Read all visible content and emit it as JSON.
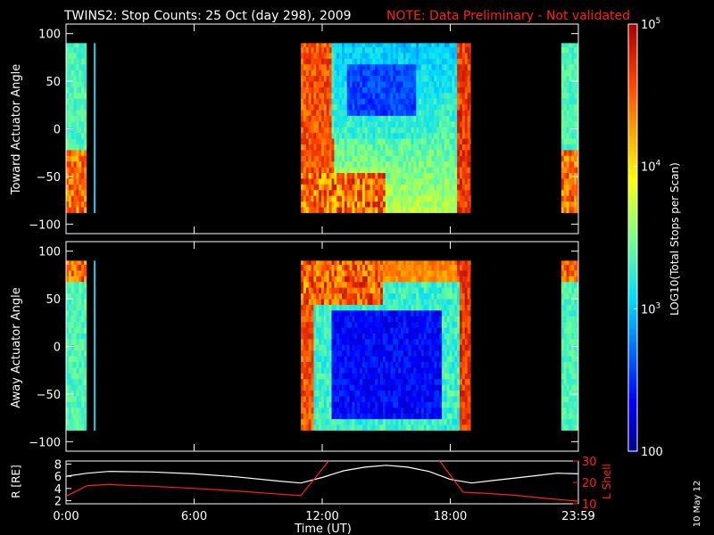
{
  "title": "TWINS2: Stop Counts: 25 Oct (day 298), 2009",
  "note": "NOTE: Data Preliminary - Not validated",
  "date_stamp": "10 May 12",
  "colors": {
    "background": "#000000",
    "axes": "#ffffff",
    "note": "#ff2020",
    "orbit_r": "#ffffff",
    "orbit_l": "#ff2020"
  },
  "chart_data": [
    {
      "type": "heatmap",
      "panel": "top",
      "ylabel": "Toward Actuator Angle",
      "ylim": [
        -110,
        110
      ],
      "yticks": [
        100,
        50,
        0,
        -50,
        -100
      ],
      "xlim_hours": [
        0,
        24
      ],
      "data_angle_range": [
        -88,
        90
      ],
      "coverage_hours": [
        [
          0.0,
          0.95
        ],
        [
          1.3,
          1.36
        ],
        [
          11.0,
          18.95
        ],
        [
          23.2,
          24.0
        ]
      ],
      "low_count_region": {
        "hours": [
          13.2,
          16.4
        ],
        "angle": [
          15,
          68
        ],
        "log10_count": 2.4
      },
      "colorbar_ref": "log10_count"
    },
    {
      "type": "heatmap",
      "panel": "middle",
      "ylabel": "Away Actuator Angle",
      "ylim": [
        -110,
        110
      ],
      "yticks": [
        100,
        50,
        0,
        -50,
        -100
      ],
      "xlim_hours": [
        0,
        24
      ],
      "data_angle_range": [
        -88,
        90
      ],
      "coverage_hours": [
        [
          0.0,
          0.95
        ],
        [
          1.3,
          1.36
        ],
        [
          11.0,
          18.95
        ],
        [
          23.2,
          24.0
        ]
      ],
      "low_count_region": {
        "hours": [
          12.4,
          17.6
        ],
        "angle": [
          -75,
          40
        ],
        "log10_count": 2.2
      },
      "colorbar_ref": "log10_count"
    },
    {
      "type": "colorbar",
      "label": "LOG10(Total Stops per Scan)",
      "scale": "log",
      "range": [
        100,
        100000
      ],
      "tick_labels": [
        "10^5",
        "10^4",
        "10^3",
        "100"
      ],
      "tick_values": [
        100000,
        10000,
        1000,
        100
      ]
    },
    {
      "type": "line",
      "panel": "orbit",
      "xlabel": "Time (UT)",
      "xlim_hours": [
        0,
        24
      ],
      "x_tick_labels": [
        "0:00",
        "6:00",
        "12:00",
        "18:00",
        "23:59"
      ],
      "x_tick_hours": [
        0,
        6,
        12,
        18,
        24
      ],
      "left_axis": {
        "label": "R [RE]",
        "ylim": [
          1.5,
          8.5
        ],
        "ticks": [
          8,
          6,
          4,
          2
        ]
      },
      "right_axis": {
        "label": "L Shell",
        "ylim": [
          10,
          30
        ],
        "ticks": [
          30,
          20,
          10
        ]
      },
      "series": [
        {
          "axis": "left",
          "x": [
            0,
            1,
            2,
            4,
            6,
            8,
            10,
            11,
            12,
            13,
            14,
            15,
            16,
            17,
            18,
            19,
            20,
            22,
            23,
            24
          ],
          "y": [
            6.0,
            6.5,
            6.8,
            6.7,
            6.4,
            5.9,
            5.2,
            4.9,
            5.8,
            6.9,
            7.5,
            7.8,
            7.5,
            6.8,
            5.5,
            4.9,
            5.3,
            6.1,
            6.5,
            6.4
          ]
        },
        {
          "axis": "right",
          "segments": [
            {
              "x": [
                0,
                1,
                2,
                4,
                6,
                8,
                10,
                11,
                12.3
              ],
              "y": [
                13.5,
                18.5,
                19.0,
                18.2,
                17.2,
                16.0,
                14.5,
                13.8,
                30
              ]
            },
            {
              "x": [
                17.5,
                18.6,
                19.5,
                21,
                22.5,
                24
              ],
              "y": [
                30,
                15.4,
                15.0,
                14.0,
                12.5,
                11.2
              ]
            }
          ]
        }
      ]
    }
  ]
}
